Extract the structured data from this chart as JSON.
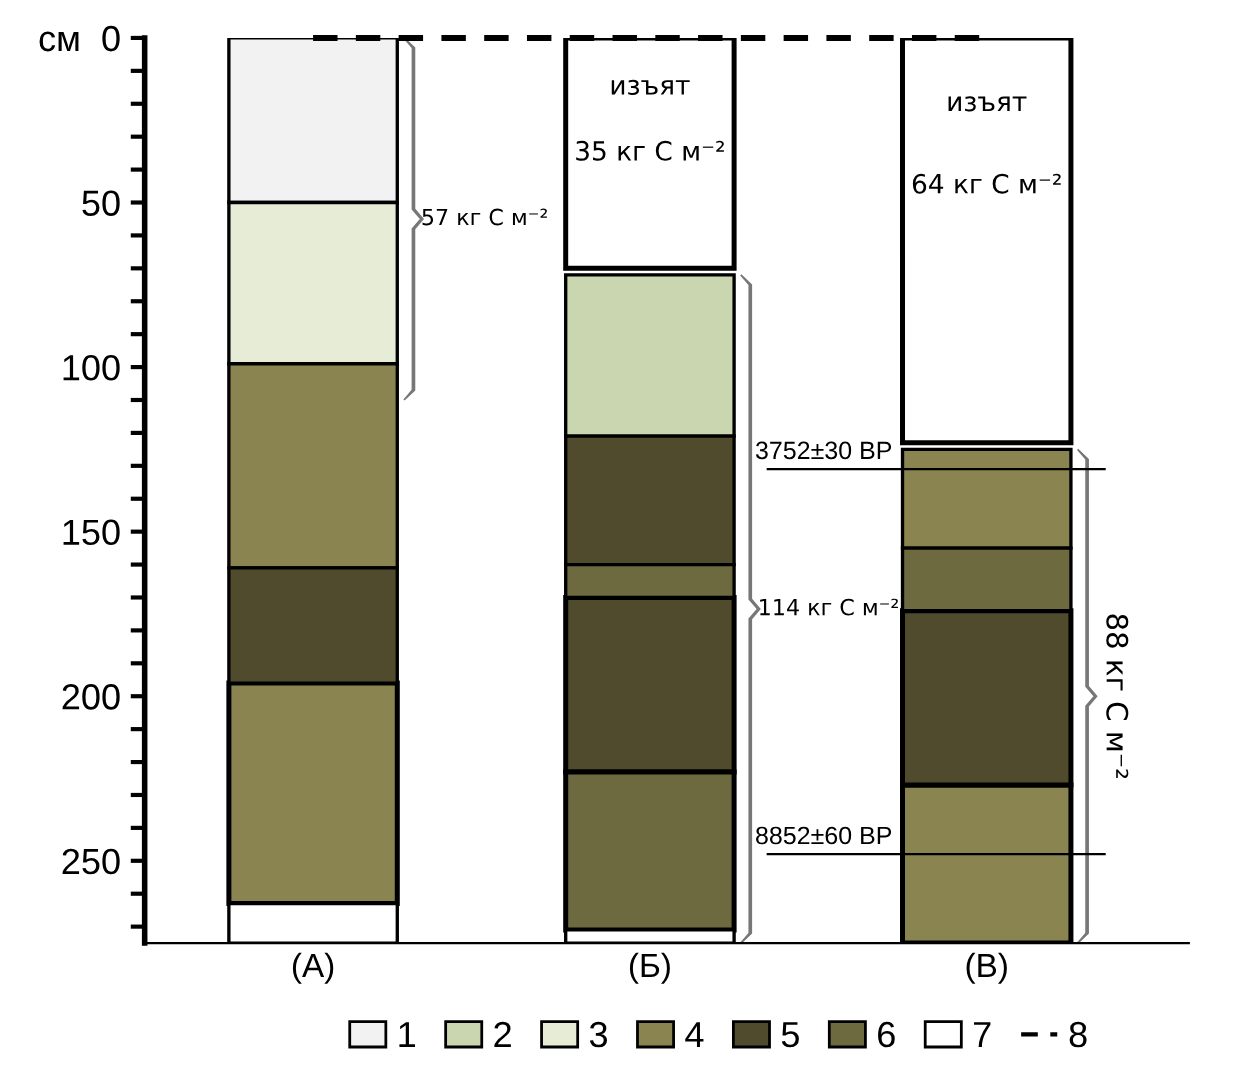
{
  "chart_data": {
    "type": "bar",
    "categories": [
      "(А)",
      "(Б)",
      "(В)"
    ],
    "ylim": [
      275,
      0
    ],
    "yticks": [
      {
        "value": 0,
        "label": "см  0"
      },
      {
        "value": 10,
        "label": null
      },
      {
        "value": 20,
        "label": null
      },
      {
        "value": 30,
        "label": null
      },
      {
        "value": 40,
        "label": null
      },
      50,
      {
        "value": 60,
        "label": null
      },
      {
        "value": 70,
        "label": null
      },
      {
        "value": 80,
        "label": null
      },
      {
        "value": 90,
        "label": null
      },
      100,
      {
        "value": 110,
        "label": null
      },
      {
        "value": 120,
        "label": null
      },
      {
        "value": 130,
        "label": null
      },
      {
        "value": 140,
        "label": null
      },
      150,
      {
        "value": 160,
        "label": null
      },
      {
        "value": 170,
        "label": null
      },
      {
        "value": 180,
        "label": null
      },
      {
        "value": 190,
        "label": null
      },
      200,
      {
        "value": 210,
        "label": null
      },
      {
        "value": 220,
        "label": null
      },
      {
        "value": 230,
        "label": null
      },
      {
        "value": 240,
        "label": null
      },
      250,
      {
        "value": 260,
        "label": null
      },
      {
        "value": 270,
        "label": null
      }
    ],
    "series": [
      {
        "name": "1",
        "color": "#f2f2f2",
        "base": [
          0,
          null,
          null
        ],
        "values": [
          50,
          null,
          null
        ]
      },
      {
        "name": "2",
        "color": "#c9d6b0",
        "base": [
          null,
          72,
          null
        ],
        "values": [
          null,
          49,
          null
        ]
      },
      {
        "name": "3",
        "color": "#e6ecd6",
        "base": [
          50,
          null,
          null
        ],
        "values": [
          49,
          null,
          null
        ]
      },
      {
        "name": "4",
        "color": "#8a8450",
        "base": [
          99,
          null,
          125
        ],
        "values": [
          62,
          null,
          30
        ]
      },
      {
        "color": "#8a8450",
        "base": [
          196,
          null,
          227
        ],
        "values": [
          67,
          null,
          48
        ]
      },
      {
        "name": "5",
        "color": "#4f4b2c",
        "base": [
          161,
          121,
          null
        ],
        "values": [
          35,
          39,
          null
        ]
      },
      {
        "color": "#4f4b2c",
        "base": [
          null,
          170,
          174
        ],
        "values": [
          null,
          53,
          53
        ]
      },
      {
        "name": "6",
        "color": "#6e6a40",
        "base": [
          null,
          160,
          155
        ],
        "values": [
          null,
          10,
          19
        ]
      },
      {
        "color": "#6e6a40",
        "base": [
          null,
          223,
          null
        ],
        "values": [
          null,
          48,
          null
        ]
      },
      {
        "name": "7",
        "color": "#ffffff",
        "base": [
          263,
          271,
          null
        ],
        "values": [
          12,
          4,
          null
        ]
      },
      {
        "color": "#ffffff",
        "base": [
          null,
          0,
          0
        ],
        "values": [
          null,
          70,
          123
        ]
      },
      {
        "name": "8",
        "type": "line",
        "color": "#000000",
        "line_style": "dashed",
        "values": [
          0,
          0,
          0
        ]
      }
    ],
    "ref_lines": [
      {
        "axis": "y",
        "value": 131,
        "label": "3752±30 BP",
        "color": "#000000"
      },
      {
        "axis": "y",
        "value": 248,
        "label": "8852±60 BP",
        "color": "#000000"
      }
    ],
    "annotations": [
      "изъят",
      "35 кг C м⁻²",
      "изъят",
      "64 кг C м⁻²",
      "57 кг C м⁻²",
      "114 кг C м⁻²",
      "88 кг C м⁻²"
    ],
    "legend": "bottom",
    "grid": false
  }
}
